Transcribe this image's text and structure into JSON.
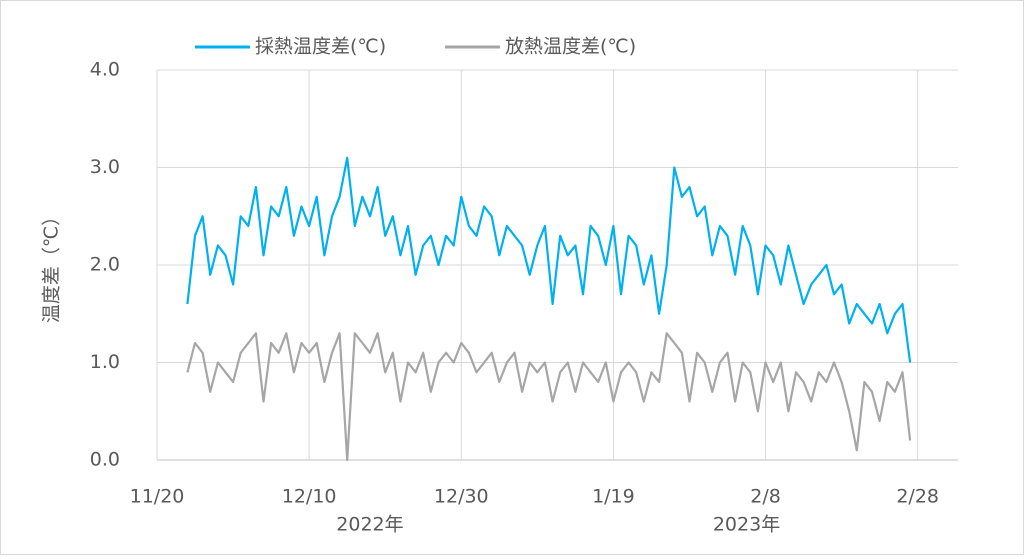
{
  "chart_data": {
    "type": "line",
    "y_label": "温度差（℃）",
    "x": [
      4,
      5,
      6,
      7,
      8,
      9,
      10,
      11,
      12,
      13,
      14,
      15,
      16,
      17,
      18,
      19,
      20,
      21,
      22,
      23,
      24,
      25,
      26,
      27,
      28,
      29,
      30,
      31,
      32,
      33,
      34,
      35,
      36,
      37,
      38,
      39,
      40,
      41,
      42,
      43,
      44,
      45,
      46,
      47,
      48,
      49,
      50,
      51,
      52,
      53,
      54,
      55,
      56,
      57,
      58,
      59,
      60,
      61,
      62,
      63,
      64,
      65,
      66,
      67,
      68,
      69,
      70,
      71,
      72,
      73,
      74,
      75,
      76,
      77,
      78,
      79,
      80,
      81,
      82,
      83,
      84,
      85,
      86,
      87,
      88,
      89,
      90,
      91,
      92,
      93,
      94,
      95,
      96,
      97,
      98,
      99
    ],
    "series": [
      {
        "name": "採熱温度差(℃)",
        "color": "#00b0f0",
        "values": [
          1.6,
          2.3,
          2.5,
          1.9,
          2.2,
          2.1,
          1.8,
          2.5,
          2.4,
          2.8,
          2.1,
          2.6,
          2.5,
          2.8,
          2.3,
          2.6,
          2.4,
          2.7,
          2.1,
          2.5,
          2.7,
          3.1,
          2.4,
          2.7,
          2.5,
          2.8,
          2.3,
          2.5,
          2.1,
          2.4,
          1.9,
          2.2,
          2.3,
          2.0,
          2.3,
          2.2,
          2.7,
          2.4,
          2.3,
          2.6,
          2.5,
          2.1,
          2.4,
          2.3,
          2.2,
          1.9,
          2.2,
          2.4,
          1.6,
          2.3,
          2.1,
          2.2,
          1.7,
          2.4,
          2.3,
          2.0,
          2.4,
          1.7,
          2.3,
          2.2,
          1.8,
          2.1,
          1.5,
          2.0,
          3.0,
          2.7,
          2.8,
          2.5,
          2.6,
          2.1,
          2.4,
          2.3,
          1.9,
          2.4,
          2.2,
          1.7,
          2.2,
          2.1,
          1.8,
          2.2,
          1.9,
          1.6,
          1.8,
          1.9,
          2.0,
          1.7,
          1.8,
          1.4,
          1.6,
          1.5,
          1.4,
          1.6,
          1.3,
          1.5,
          1.6,
          1.0
        ]
      },
      {
        "name": "放熱温度差(℃)",
        "color": "#a6a6a6",
        "values": [
          0.9,
          1.2,
          1.1,
          0.7,
          1.0,
          0.9,
          0.8,
          1.1,
          1.2,
          1.3,
          0.6,
          1.2,
          1.1,
          1.3,
          0.9,
          1.2,
          1.1,
          1.2,
          0.8,
          1.1,
          1.3,
          0.0,
          1.3,
          1.2,
          1.1,
          1.3,
          0.9,
          1.1,
          0.6,
          1.0,
          0.9,
          1.1,
          0.7,
          1.0,
          1.1,
          1.0,
          1.2,
          1.1,
          0.9,
          1.0,
          1.1,
          0.8,
          1.0,
          1.1,
          0.7,
          1.0,
          0.9,
          1.0,
          0.6,
          0.9,
          1.0,
          0.7,
          1.0,
          0.9,
          0.8,
          1.0,
          0.6,
          0.9,
          1.0,
          0.9,
          0.6,
          0.9,
          0.8,
          1.3,
          1.2,
          1.1,
          0.6,
          1.1,
          1.0,
          0.7,
          1.0,
          1.1,
          0.6,
          1.0,
          0.9,
          0.5,
          1.0,
          0.8,
          1.0,
          0.5,
          0.9,
          0.8,
          0.6,
          0.9,
          0.8,
          1.0,
          0.8,
          0.5,
          0.1,
          0.8,
          0.7,
          0.4,
          0.8,
          0.7,
          0.9,
          0.2
        ]
      }
    ],
    "xlim": [
      0,
      105.3
    ],
    "xticks": [
      {
        "value": 0,
        "label": "11/20"
      },
      {
        "value": 20,
        "label": "12/10"
      },
      {
        "value": 40,
        "label": "12/30"
      },
      {
        "value": 60,
        "label": "1/19"
      },
      {
        "value": 80,
        "label": "2/8"
      },
      {
        "value": 100,
        "label": "2/28"
      }
    ],
    "x_group_labels": [
      {
        "value": 28,
        "label": "2022年"
      },
      {
        "value": 77.5,
        "label": "2023年"
      }
    ],
    "ylim": [
      0,
      4
    ],
    "yticks": [
      {
        "value": 0,
        "label": "0.0"
      },
      {
        "value": 1,
        "label": "1.0"
      },
      {
        "value": 2,
        "label": "2.0"
      },
      {
        "value": 3,
        "label": "3.0"
      },
      {
        "value": 4,
        "label": "4.0"
      }
    ],
    "grid": true,
    "legend": "top"
  }
}
